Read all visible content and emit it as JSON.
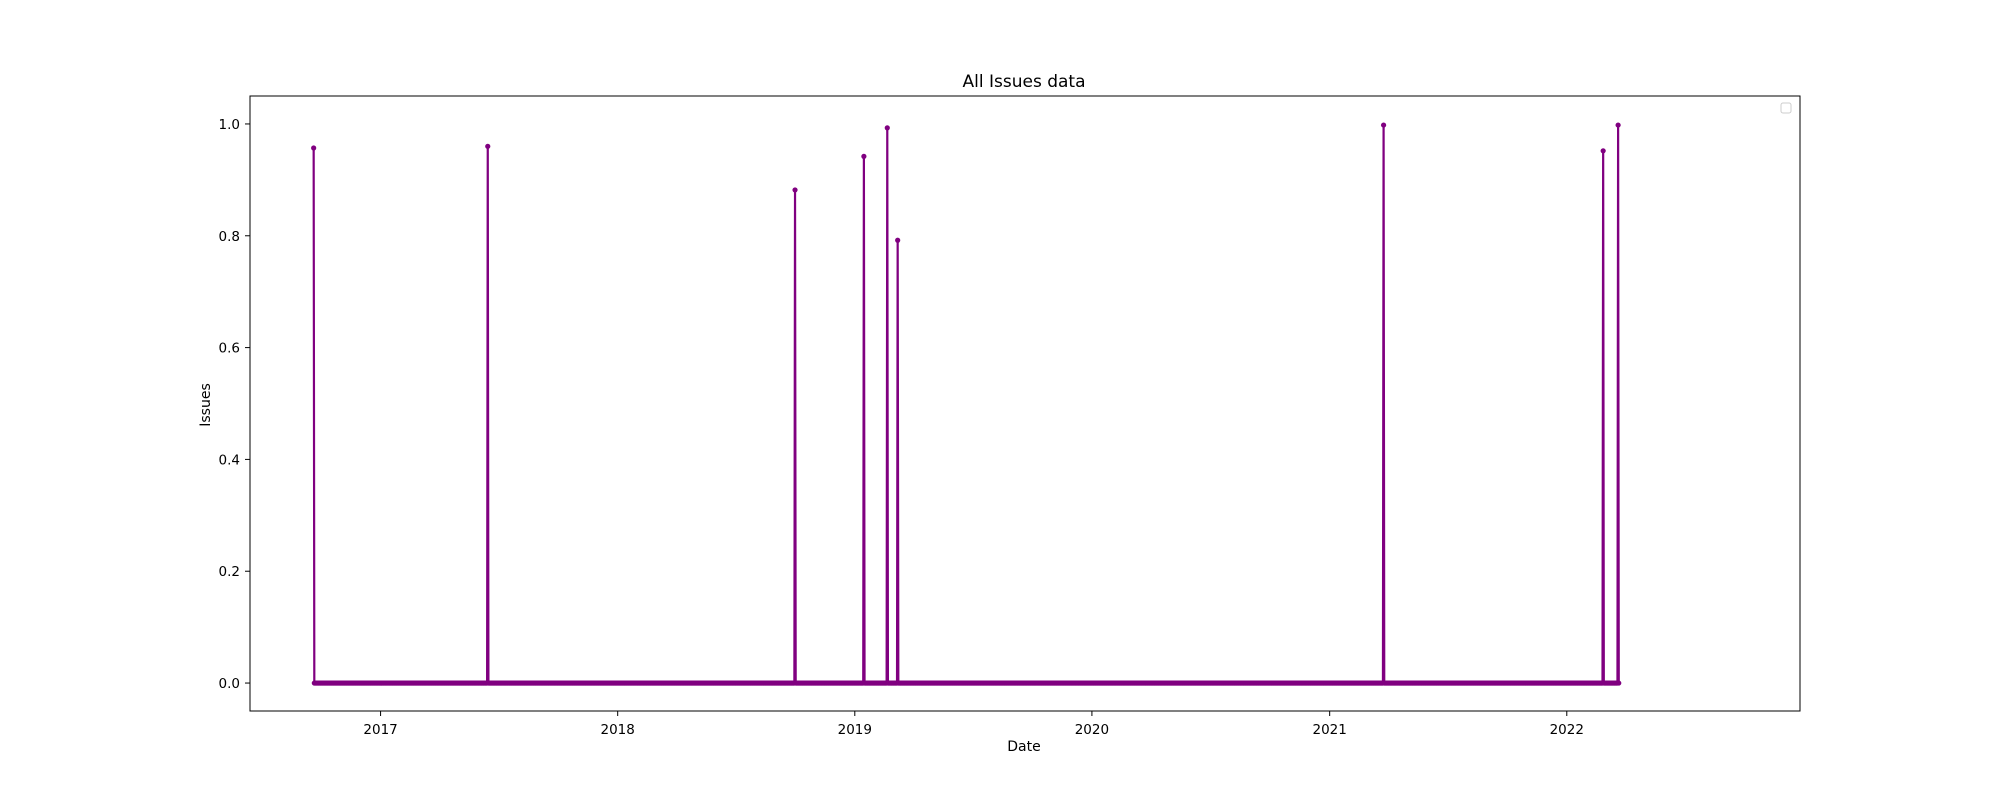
{
  "chart_data": {
    "type": "line",
    "title": "All Issues data",
    "xlabel": "Date",
    "ylabel": "Issues",
    "x_type": "date",
    "xlim": [
      "2016-06-14",
      "2022-12-26"
    ],
    "ylim": [
      -0.05,
      1.05
    ],
    "x_ticks": [
      "2017-01-01",
      "2018-01-01",
      "2019-01-01",
      "2020-01-01",
      "2021-01-01",
      "2022-01-01"
    ],
    "x_tick_labels": [
      "2017",
      "2018",
      "2019",
      "2020",
      "2021",
      "2022"
    ],
    "y_ticks": [
      0.0,
      0.2,
      0.4,
      0.6,
      0.8,
      1.0
    ],
    "y_tick_labels": [
      "0.0",
      "0.2",
      "0.4",
      "0.6",
      "0.8",
      "1.0"
    ],
    "grid": false,
    "legend": {
      "position": "upper right",
      "entries": []
    },
    "series": [
      {
        "color": "#800080",
        "x_start": "2016-09-20",
        "x_end": "2022-03-22",
        "baseline": 0.0,
        "spikes": [
          {
            "x": "2016-09-20",
            "y": 0.957
          },
          {
            "x": "2017-06-15",
            "y": 0.96
          },
          {
            "x": "2018-10-01",
            "y": 0.882
          },
          {
            "x": "2019-01-15",
            "y": 0.942
          },
          {
            "x": "2019-02-20",
            "y": 0.993
          },
          {
            "x": "2019-03-08",
            "y": 0.792
          },
          {
            "x": "2021-03-25",
            "y": 0.998
          },
          {
            "x": "2022-02-26",
            "y": 0.952
          },
          {
            "x": "2022-03-21",
            "y": 0.998
          }
        ]
      }
    ]
  }
}
